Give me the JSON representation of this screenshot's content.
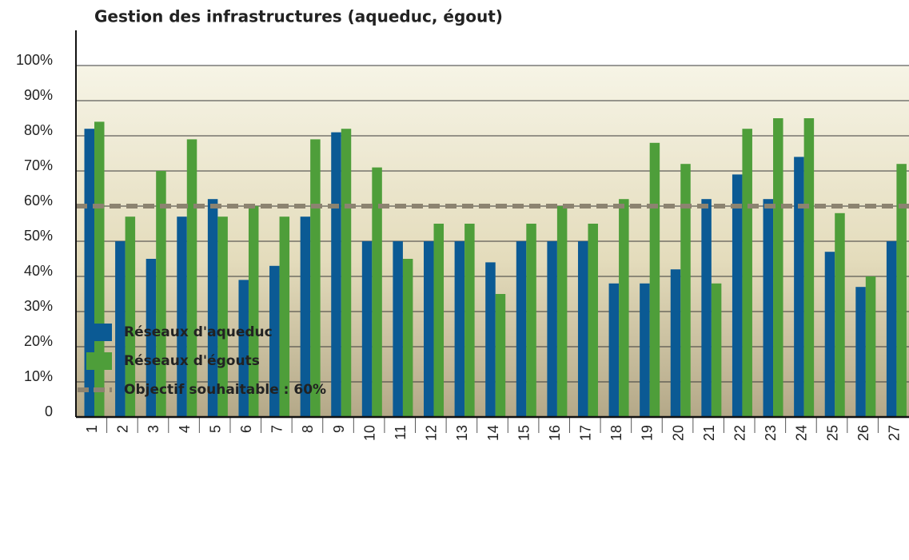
{
  "chart_data": {
    "type": "bar",
    "title": "Gestion des infrastructures (aqueduc, égout)",
    "categories": [
      "1",
      "2",
      "3",
      "4",
      "5",
      "6",
      "7",
      "8",
      "9",
      "10",
      "11",
      "12",
      "13",
      "14",
      "15",
      "16",
      "17",
      "18",
      "19",
      "20",
      "21",
      "22",
      "23",
      "24",
      "25",
      "26",
      "27"
    ],
    "series": [
      {
        "name": "Réseaux d'aqueduc",
        "color": "#0b5a94",
        "values": [
          82,
          50,
          45,
          57,
          62,
          39,
          43,
          57,
          81,
          50,
          50,
          50,
          50,
          44,
          50,
          50,
          50,
          38,
          38,
          42,
          62,
          69,
          62,
          74,
          47,
          37,
          50
        ]
      },
      {
        "name": "Réseaux d'égouts",
        "color": "#4e9e3a",
        "values": [
          84,
          57,
          70,
          79,
          57,
          60,
          57,
          79,
          82,
          71,
          45,
          55,
          55,
          35,
          55,
          60,
          55,
          62,
          78,
          72,
          38,
          82,
          85,
          85,
          58,
          40,
          72
        ]
      }
    ],
    "target": {
      "name": "Objectif souhaitable : 60%",
      "value": 60,
      "color": "#8c8370"
    },
    "ylim": [
      0,
      100
    ],
    "yticks": [
      0,
      {
        "value": 10,
        "label": "10%"
      },
      {
        "value": 20,
        "label": "20%"
      },
      {
        "value": 30,
        "label": "30%"
      },
      {
        "value": 40,
        "label": "40%"
      },
      {
        "value": 50,
        "label": "50%"
      },
      {
        "value": 60,
        "label": "60%"
      },
      {
        "value": 70,
        "label": "70%"
      },
      {
        "value": 80,
        "label": "80%"
      },
      {
        "value": 90,
        "label": "90%"
      },
      {
        "value": 100,
        "label": "100%"
      }
    ],
    "grid": true
  }
}
